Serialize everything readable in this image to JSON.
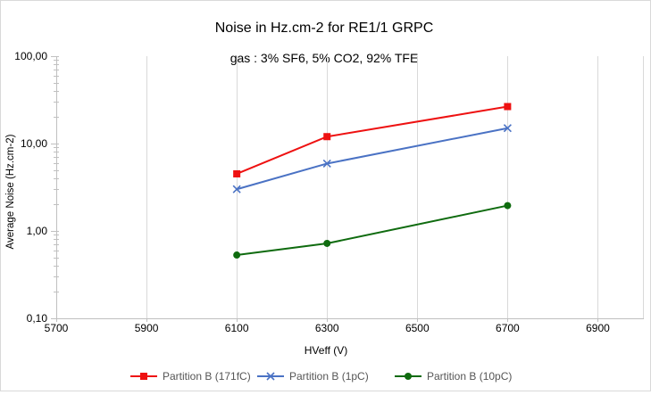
{
  "chart_data": {
    "type": "line",
    "title": "Noise in Hz.cm-2 for RE1/1 GRPC",
    "subtitle": "gas : 3% SF6, 5% CO2, 92% TFE",
    "xlabel": "HVeff (V)",
    "ylabel": "Average Noise (Hz.cm-2)",
    "xlim": [
      5700,
      7000
    ],
    "x_ticks": [
      5700,
      5900,
      6100,
      6300,
      6500,
      6700,
      6900
    ],
    "x_tick_labels": [
      "5700",
      "5900",
      "6100",
      "6300",
      "6500",
      "6700",
      "6900"
    ],
    "y_scale": "log",
    "ylim": [
      0.1,
      100
    ],
    "y_ticks": [
      0.1,
      1,
      10,
      100
    ],
    "y_tick_labels": [
      "0,10",
      "1,00",
      "10,00",
      "100,00"
    ],
    "grid": "vertical",
    "legend_position": "bottom",
    "series": [
      {
        "name": "Partition B (171fC)",
        "color": "#ee1111",
        "marker": "square",
        "x": [
          6100,
          6300,
          6700
        ],
        "y": [
          4.5,
          12.0,
          26.5
        ]
      },
      {
        "name": "Partition B (1pC)",
        "color": "#4a72c4",
        "marker": "x",
        "x": [
          6100,
          6300,
          6700
        ],
        "y": [
          3.0,
          5.9,
          15.0
        ]
      },
      {
        "name": "Partition B (10pC)",
        "color": "#0f6b0f",
        "marker": "circle",
        "x": [
          6100,
          6300,
          6700
        ],
        "y": [
          0.53,
          0.72,
          1.95
        ]
      }
    ]
  }
}
